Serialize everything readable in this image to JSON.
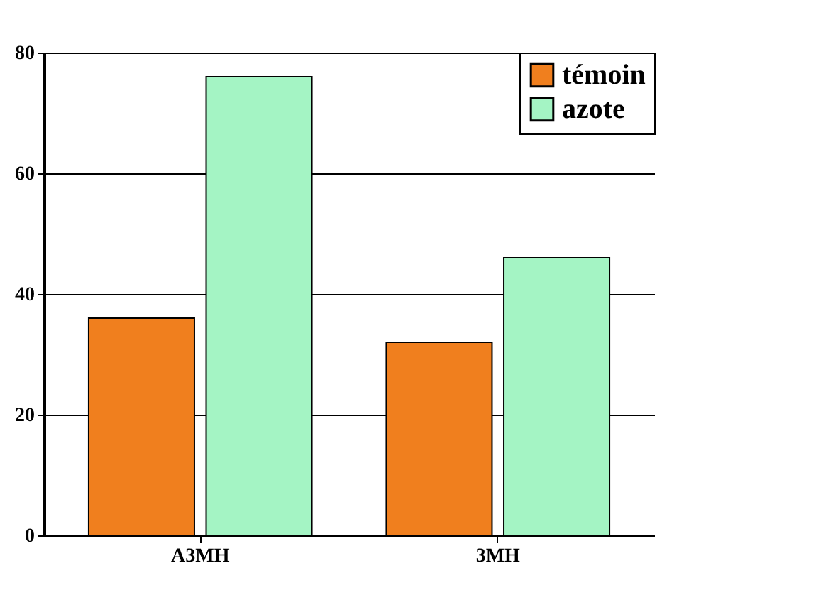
{
  "chart_data": {
    "type": "bar",
    "categories": [
      "A3MH",
      "3MH"
    ],
    "series": [
      {
        "name": "témoin",
        "color": "#f07f1e",
        "values": [
          36,
          32
        ]
      },
      {
        "name": "azote",
        "color": "#a4f4c4",
        "values": [
          76,
          46
        ]
      }
    ],
    "ylim": [
      0,
      80
    ],
    "yticks": [
      0,
      20,
      40,
      60,
      80
    ],
    "grid": "y",
    "legend": "top right"
  }
}
